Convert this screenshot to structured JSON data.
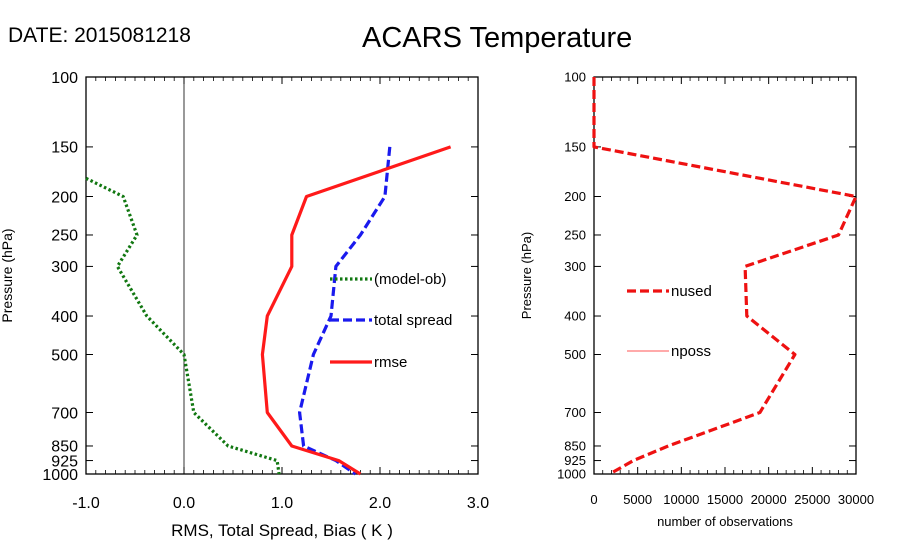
{
  "header": {
    "date_label": "DATE: 2015081218",
    "title": "ACARS Temperature"
  },
  "colors": {
    "rmse": "#ff1a1a",
    "total_spread": "#1a1aee",
    "bias": "#117711",
    "nused": "#ee1111",
    "nposs": "#ff7777"
  },
  "chart_data": [
    {
      "type": "line",
      "yscale": "log",
      "ylabel": "Pressure (hPa)",
      "xlabel": "RMS, Total Spread, Bias ( K )",
      "xlim": [
        -1.0,
        3.0
      ],
      "ylim": [
        1000,
        100
      ],
      "x_tick_labels": [
        "-1.0",
        "0.0",
        "1.0",
        "2.0",
        "3.0"
      ],
      "x_ticks": [
        -1.0,
        0.0,
        1.0,
        2.0,
        3.0
      ],
      "y_ticks": [
        100,
        150,
        200,
        250,
        300,
        400,
        500,
        700,
        850,
        925,
        1000
      ],
      "y_tick_labels": [
        "100",
        "150",
        "200",
        "250",
        "300",
        "400",
        "500",
        "700",
        "850",
        "925",
        "1000"
      ],
      "zero_line": 0.0,
      "series": [
        {
          "name": "(model-ob)",
          "style": "dotted",
          "x": [
            -1.0,
            -0.62,
            -0.48,
            -0.68,
            -0.38,
            0.0,
            0.1,
            0.45,
            0.95,
            0.97
          ],
          "y": [
            180,
            200,
            250,
            300,
            400,
            500,
            700,
            850,
            925,
            1000
          ]
        },
        {
          "name": "total spread",
          "style": "dashed",
          "x": [
            2.1,
            2.05,
            1.8,
            1.55,
            1.5,
            1.32,
            1.18,
            1.22,
            1.55,
            1.75
          ],
          "y": [
            150,
            200,
            250,
            300,
            400,
            500,
            700,
            850,
            925,
            1000
          ]
        },
        {
          "name": "rmse",
          "style": "solid",
          "x": [
            2.72,
            1.25,
            1.1,
            1.1,
            0.85,
            0.8,
            0.85,
            1.1,
            1.58,
            1.8
          ],
          "y": [
            150,
            200,
            250,
            300,
            400,
            500,
            700,
            850,
            925,
            1000
          ]
        }
      ]
    },
    {
      "type": "line",
      "yscale": "log",
      "ylabel": "Pressure (hPa)",
      "xlabel": "number of observations",
      "xlim": [
        0,
        30000
      ],
      "ylim": [
        1000,
        100
      ],
      "x_tick_labels": [
        "0",
        "5000",
        "10000",
        "15000",
        "20000",
        "25000",
        "30000"
      ],
      "x_ticks": [
        0,
        5000,
        10000,
        15000,
        20000,
        25000,
        30000
      ],
      "y_ticks": [
        100,
        150,
        200,
        250,
        300,
        400,
        500,
        700,
        850,
        925,
        1000
      ],
      "y_tick_labels": [
        "100",
        "150",
        "200",
        "250",
        "300",
        "400",
        "500",
        "700",
        "850",
        "925",
        "1000"
      ],
      "series": [
        {
          "name": "nused",
          "style": "dashed",
          "x": [
            0,
            0,
            30000,
            28000,
            17300,
            17500,
            23000,
            19000,
            8500,
            4500,
            1800
          ],
          "y": [
            100,
            150,
            200,
            250,
            300,
            400,
            500,
            700,
            850,
            925,
            1000
          ]
        },
        {
          "name": "nposs",
          "style": "solid-thin",
          "x": [],
          "y": []
        }
      ]
    }
  ]
}
